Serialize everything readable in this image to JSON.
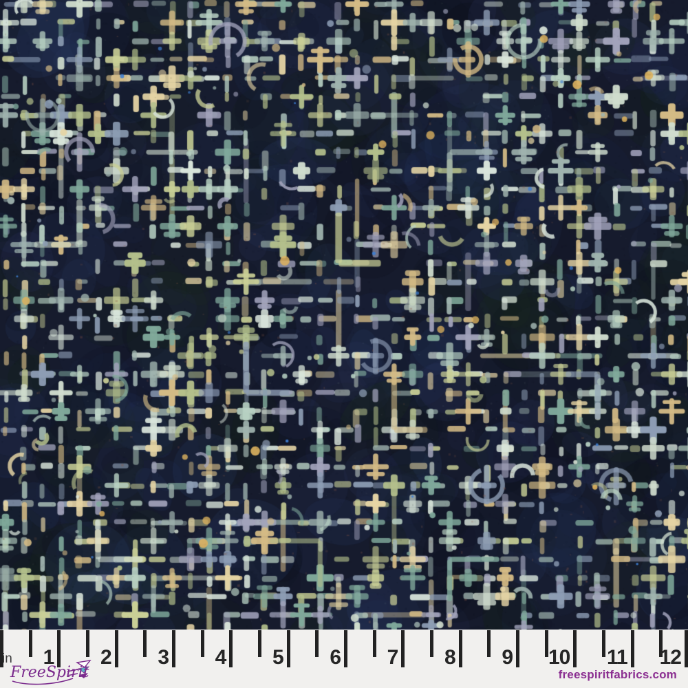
{
  "fabric": {
    "description": "dark indigo grunge fabric with stamped grid of crosses, dashes, dots and arcs in pale teal, sage, cream and lavender",
    "base_color": "#161b2d",
    "palette": [
      "#b8d1c3",
      "#cfdccd",
      "#8d9db4",
      "#a2a3bb",
      "#b3bf8b",
      "#c9cf96",
      "#e5d4a4",
      "#d3ba85",
      "#7fa89a",
      "#9fb3ae",
      "#d8e4da"
    ],
    "blotch_colors": [
      "#0b0e19",
      "#1a2340",
      "#223055",
      "#142018",
      "#1c2b22",
      "#0e1322",
      "#252f52"
    ],
    "glow_color": "#2e4272",
    "accent_gold": "#dcb25f",
    "accent_blue": "#3d7ed2",
    "fleck_rust": "#8a5a48",
    "speckle_dark": "#04060d",
    "speckle_light": "#d9e6df"
  },
  "ruler": {
    "unit_label": "in",
    "numbers": [
      "1",
      "2",
      "3",
      "4",
      "5",
      "6",
      "7",
      "8",
      "9",
      "10",
      "11",
      "12"
    ],
    "tick_color": "#222222",
    "background": "#f1f0ee",
    "number_color": "#262626"
  },
  "branding": {
    "logo_text": "FreeSpirit",
    "website": "freespiritfabrics.com",
    "logo_color": "#7b2b8d",
    "logo_accent_teal": "#5ab3c4",
    "website_color": "#8b2f91"
  }
}
